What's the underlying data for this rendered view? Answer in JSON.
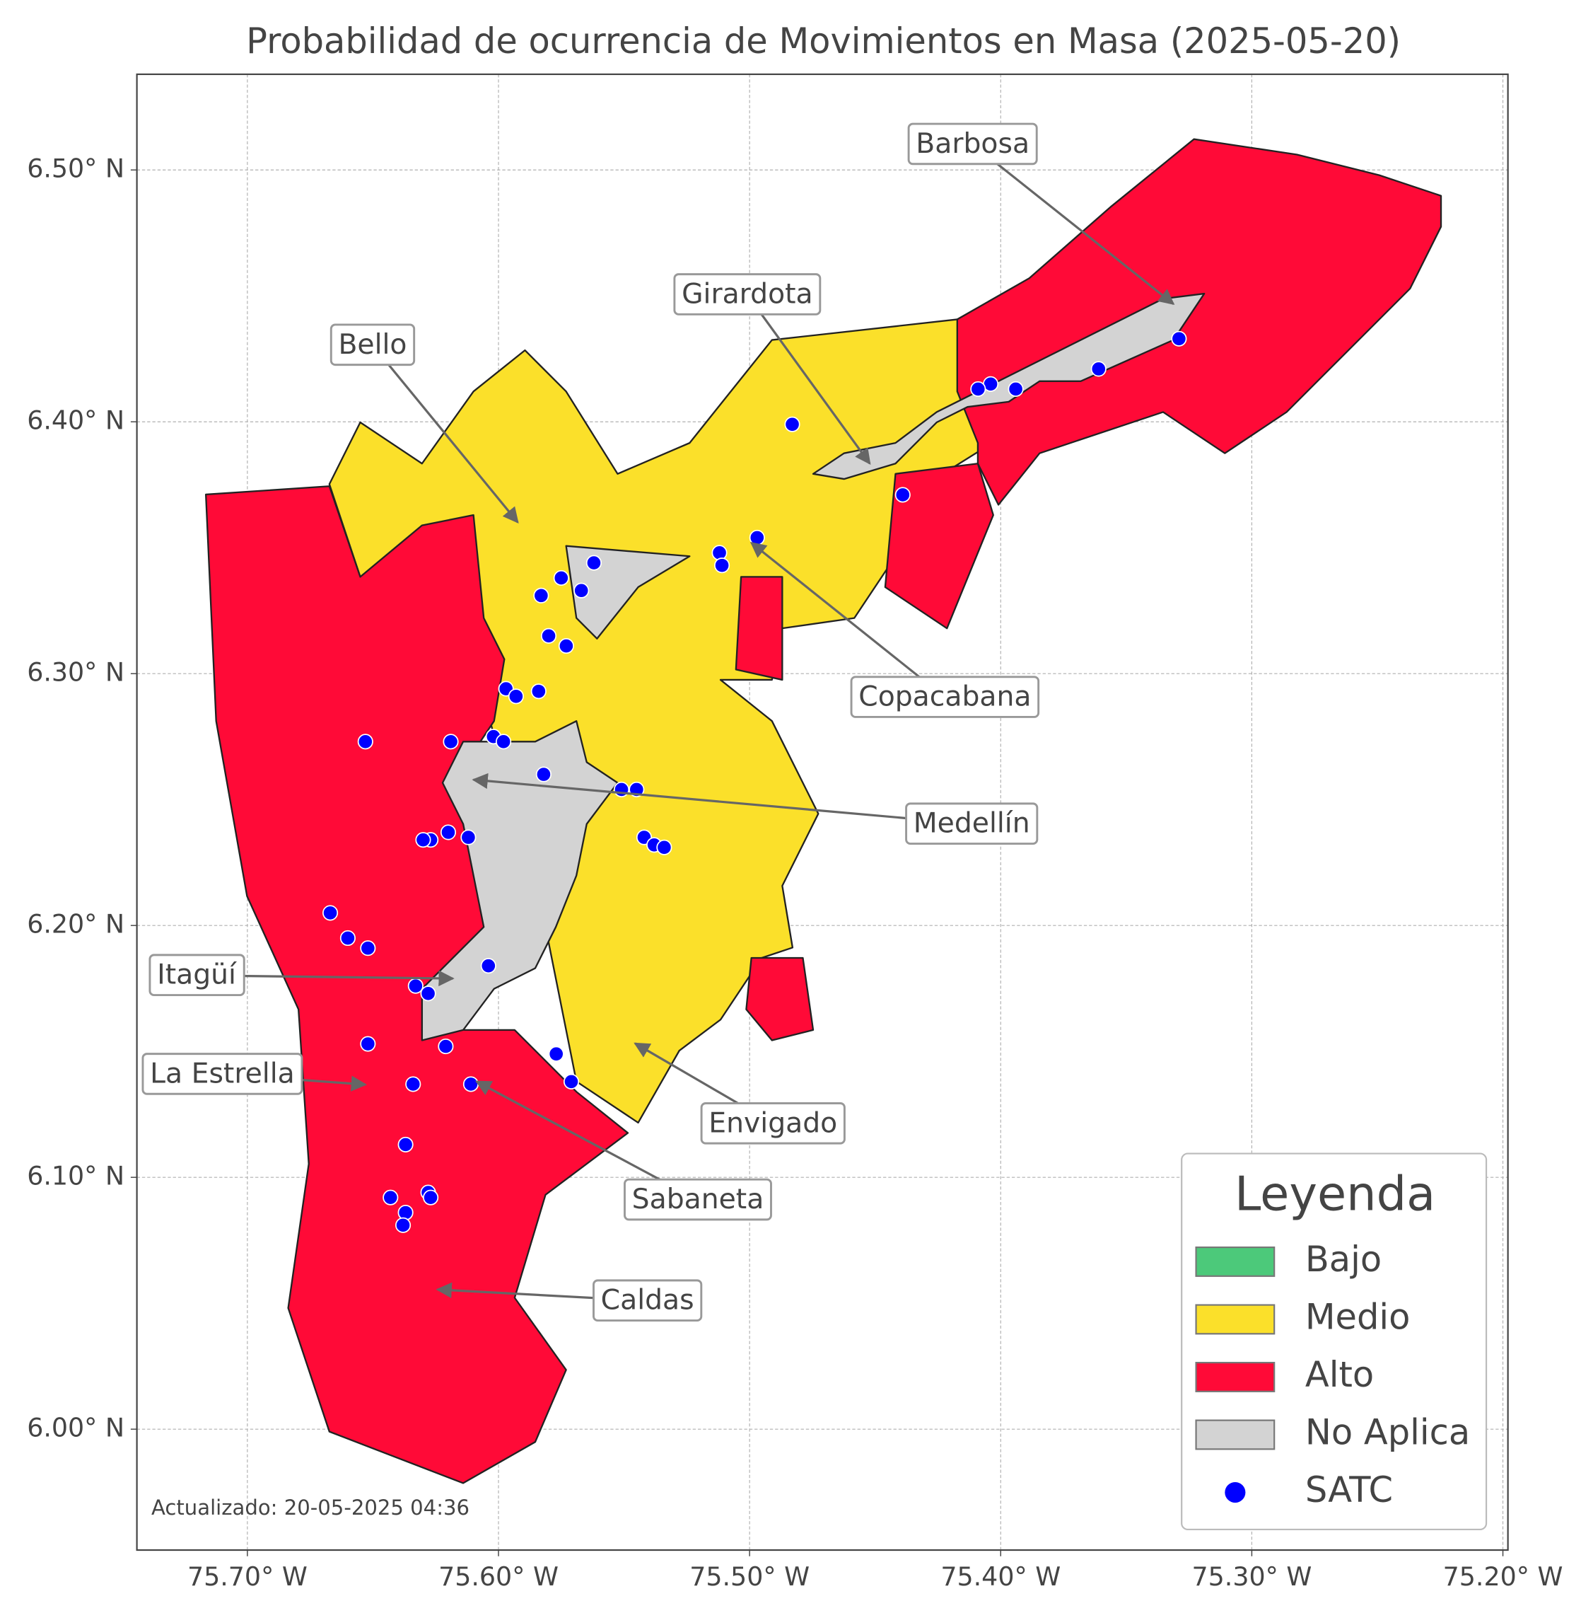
{
  "chart_data": {
    "type": "map",
    "title": "Probabilidad de ocurrencia de Movimientos en Masa (2025-05-20)",
    "xlim": [
      -75.744,
      -75.198
    ],
    "ylim": [
      5.952,
      6.538
    ],
    "xticks": [
      {
        "value": -75.7,
        "label": "75.70° W"
      },
      {
        "value": -75.6,
        "label": "75.60° W"
      },
      {
        "value": -75.5,
        "label": "75.50° W"
      },
      {
        "value": -75.4,
        "label": "75.40° W"
      },
      {
        "value": -75.3,
        "label": "75.30° W"
      },
      {
        "value": -75.2,
        "label": "75.20° W"
      }
    ],
    "yticks": [
      {
        "value": 6.0,
        "label": "6.00° N"
      },
      {
        "value": 6.1,
        "label": "6.10° N"
      },
      {
        "value": 6.2,
        "label": "6.20° N"
      },
      {
        "value": 6.3,
        "label": "6.30° N"
      },
      {
        "value": 6.4,
        "label": "6.40° N"
      },
      {
        "value": 6.5,
        "label": "6.50° N"
      }
    ],
    "grid": true,
    "legend": {
      "title": "Leyenda",
      "corner": "lower right"
    },
    "categories": [
      {
        "name": "Bajo",
        "color": "#4cc97a"
      },
      {
        "name": "Medio",
        "color": "#fbe02a"
      },
      {
        "name": "Alto",
        "color": "#ff0a37"
      },
      {
        "name": "No Aplica",
        "color": "#d3d3d3"
      }
    ],
    "series": [
      {
        "name": "SATC",
        "color": "#0000ff",
        "x": [
          -75.329,
          -75.361,
          -75.394,
          -75.404,
          -75.409,
          -75.483,
          -75.439,
          -75.497,
          -75.512,
          -75.511,
          -75.562,
          -75.575,
          -75.567,
          -75.583,
          -75.58,
          -75.573,
          -75.597,
          -75.593,
          -75.584,
          -75.653,
          -75.619,
          -75.602,
          -75.598,
          -75.582,
          -75.551,
          -75.545,
          -75.542,
          -75.538,
          -75.534,
          -75.62,
          -75.627,
          -75.63,
          -75.612,
          -75.667,
          -75.66,
          -75.652,
          -75.604,
          -75.633,
          -75.628,
          -75.652,
          -75.621,
          -75.577,
          -75.571,
          -75.634,
          -75.611,
          -75.637,
          -75.643,
          -75.628,
          -75.627,
          -75.637,
          -75.638
        ],
        "y": [
          6.433,
          6.421,
          6.413,
          6.415,
          6.413,
          6.399,
          6.371,
          6.354,
          6.348,
          6.343,
          6.344,
          6.338,
          6.333,
          6.331,
          6.315,
          6.311,
          6.294,
          6.291,
          6.293,
          6.273,
          6.273,
          6.275,
          6.273,
          6.26,
          6.254,
          6.254,
          6.235,
          6.232,
          6.231,
          6.237,
          6.234,
          6.234,
          6.235,
          6.205,
          6.195,
          6.191,
          6.184,
          6.176,
          6.173,
          6.153,
          6.152,
          6.149,
          6.138,
          6.137,
          6.137,
          6.113,
          6.092,
          6.094,
          6.092,
          6.086,
          6.081
        ]
      }
    ],
    "annotations": [
      "Barbosa",
      "Girardota",
      "Bello",
      "Copacabana",
      "Medellín",
      "Itagüí",
      "La Estrella",
      "Envigado",
      "Sabaneta",
      "Caldas"
    ],
    "footnote": "Actualizado: 20-05-2025 04:36"
  }
}
